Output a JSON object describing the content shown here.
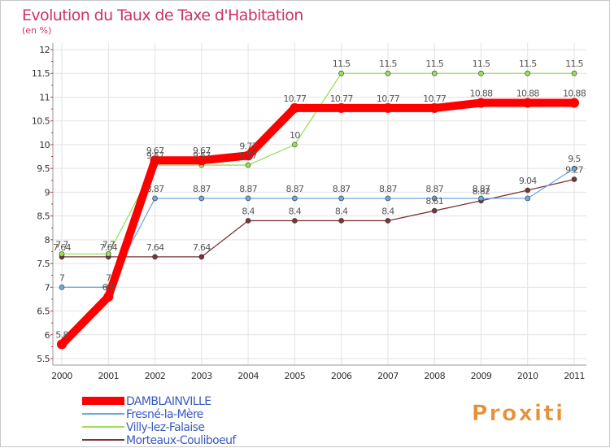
{
  "chart_data": {
    "type": "line",
    "title": "Evolution du Taux de Taxe d'Habitation",
    "subtitle": "(en %)",
    "x": [
      "2000",
      "2001",
      "2002",
      "2003",
      "2004",
      "2005",
      "2006",
      "2007",
      "2008",
      "2009",
      "2010",
      "2011"
    ],
    "ylim": [
      5.5,
      12
    ],
    "yticks": [
      "5.5",
      "6",
      "6.5",
      "7",
      "7.5",
      "8",
      "8.5",
      "9",
      "9.5",
      "10",
      "10.5",
      "11",
      "11.5",
      "12"
    ],
    "grid": true,
    "legend_position": "bottom-left",
    "series": [
      {
        "name": "DAMBLAINVILLE",
        "color": "#ff0000",
        "values": [
          5.8,
          6.8,
          9.67,
          9.67,
          9.77,
          10.77,
          10.77,
          10.77,
          10.77,
          10.88,
          10.88,
          10.88
        ],
        "labels": [
          "5.8",
          "6.8",
          "9.67",
          "9.67",
          "9.77",
          "10.77",
          "10.77",
          "10.77",
          "10.77",
          "10.88",
          "10.88",
          "10.88"
        ]
      },
      {
        "name": "Fresné-la-Mère",
        "color": "#6fa8dc",
        "values": [
          7,
          7,
          8.87,
          8.87,
          8.87,
          8.87,
          8.87,
          8.87,
          8.87,
          8.87,
          8.87,
          9.5
        ],
        "labels": [
          "7",
          "7",
          "8.87",
          "8.87",
          "8.87",
          "8.87",
          "8.87",
          "8.87",
          "8.87",
          "8.87",
          "",
          "9.5"
        ]
      },
      {
        "name": "Villy-lez-Falaise",
        "color": "#99e05a",
        "values": [
          7.7,
          7.7,
          9.57,
          9.57,
          9.57,
          10,
          11.5,
          11.5,
          11.5,
          11.5,
          11.5,
          11.5
        ],
        "labels": [
          "7.7",
          "7.7",
          "9.57",
          "9.57",
          "9.57",
          "10",
          "11.5",
          "11.5",
          "11.5",
          "11.5",
          "11.5",
          "11.5"
        ]
      },
      {
        "name": "Morteaux-Couliboeuf",
        "color": "#7a3535",
        "values": [
          7.64,
          7.64,
          7.64,
          7.64,
          8.4,
          8.4,
          8.4,
          8.4,
          8.61,
          8.82,
          9.04,
          9.27
        ],
        "labels": [
          "7.64",
          "7.64",
          "7.64",
          "7.64",
          "8.4",
          "8.4",
          "8.4",
          "8.4",
          "8.61",
          "8.82",
          "9.04",
          "9.27"
        ]
      }
    ]
  },
  "logo": {
    "text": "Proxiti"
  }
}
